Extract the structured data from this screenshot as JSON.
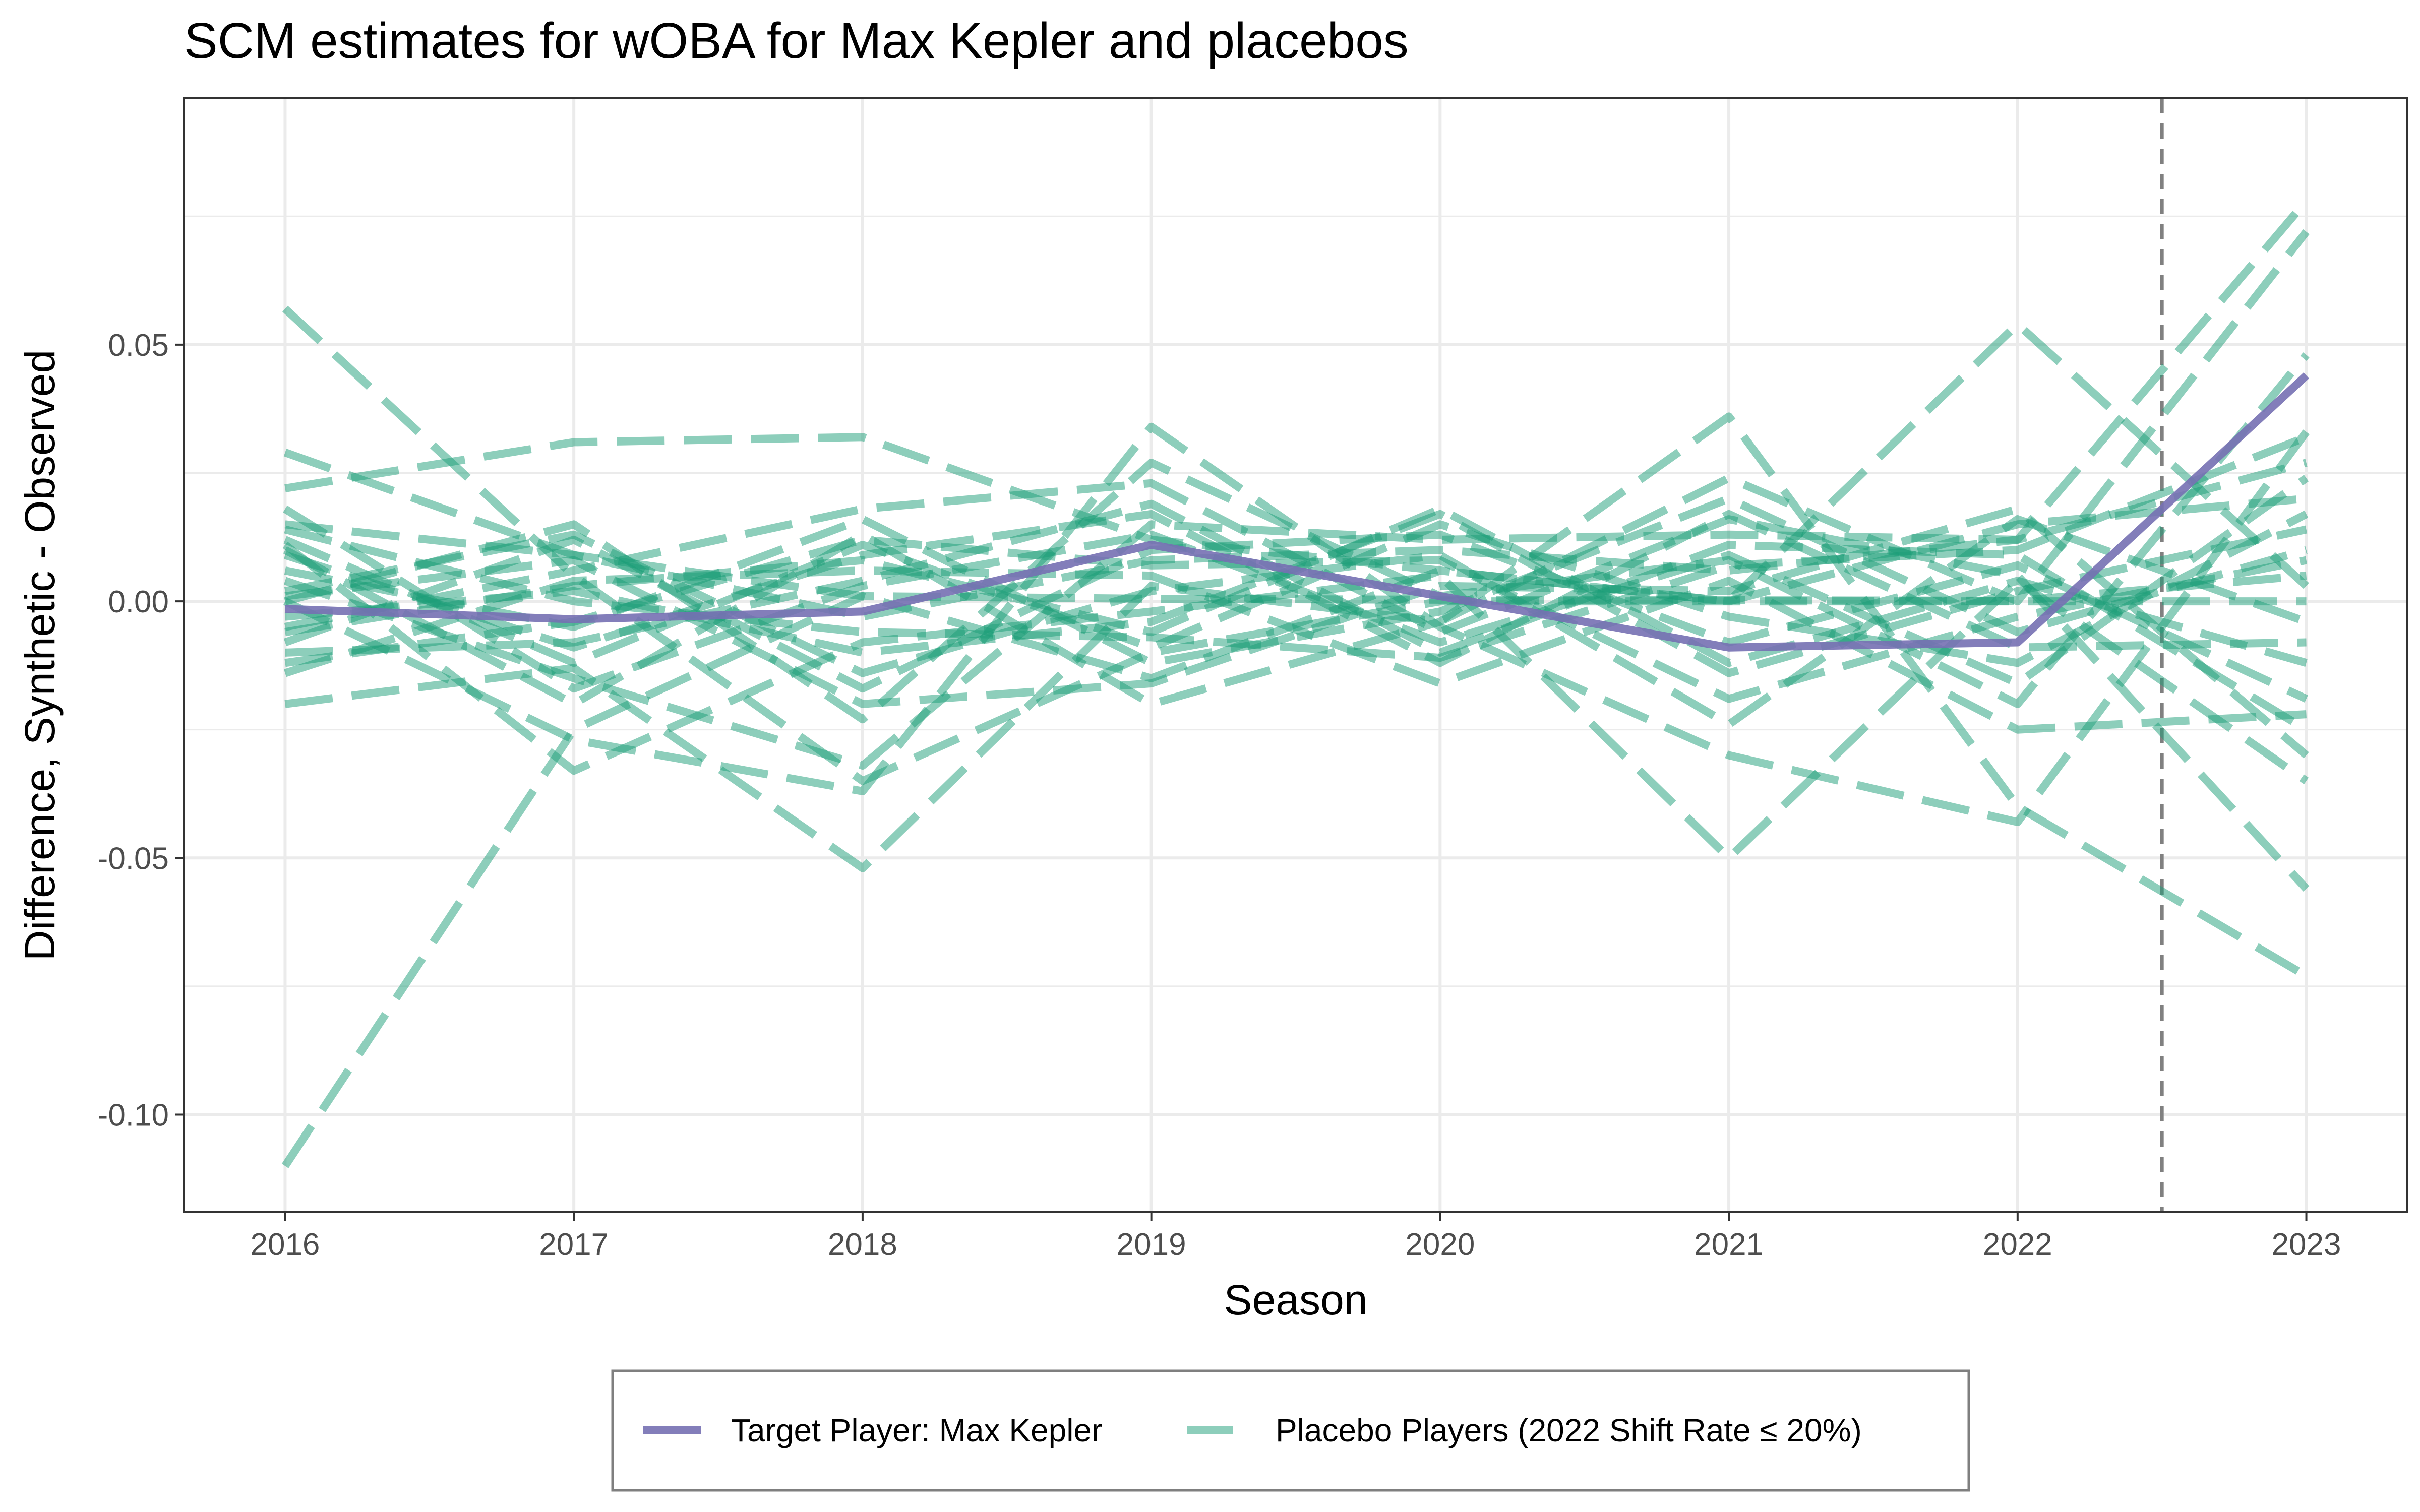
{
  "chart_data": {
    "type": "line",
    "title": "SCM estimates for wOBA for Max Kepler and placebos",
    "xlabel": "Season",
    "ylabel": "Difference, Synthetic - Observed",
    "x": [
      2016,
      2017,
      2018,
      2019,
      2020,
      2021,
      2022,
      2023
    ],
    "x_ticks": [
      "2016",
      "2017",
      "2018",
      "2019",
      "2020",
      "2021",
      "2022",
      "2023"
    ],
    "y_ticks": [
      {
        "value": 0.05,
        "label": "0.05"
      },
      {
        "value": 0.0,
        "label": "0.00"
      },
      {
        "value": -0.05,
        "label": "-0.05"
      },
      {
        "value": -0.1,
        "label": "-0.10"
      }
    ],
    "xlim": [
      2015.65,
      2023.35
    ],
    "ylim": [
      -0.119,
      0.098
    ],
    "grid": true,
    "treatment_line_x": 2022.5,
    "legend_position": "bottom",
    "colors": {
      "target": "#7570b3",
      "placebo": "#1b9e77",
      "treatment_line": "#808080",
      "grid": "#ebebeb",
      "panel_border": "#333333"
    },
    "series": [
      {
        "name": "Target Player: Max Kepler",
        "role": "target",
        "values": [
          -0.0015,
          -0.0035,
          -0.002,
          0.011,
          0.001,
          -0.009,
          -0.008,
          0.044
        ]
      },
      {
        "name": "Placebo Players (2022 Shift Rate ≤ 20%)",
        "role": "placebo",
        "values": [
          -0.11,
          -0.025,
          0.001,
          0.0005,
          0.0003,
          0.0002,
          0.0001,
          0.005
        ]
      },
      {
        "role": "placebo",
        "values": [
          0.057,
          0.005,
          -0.035,
          -0.01,
          0.0,
          0.0,
          0.0,
          0.0
        ]
      },
      {
        "role": "placebo",
        "values": [
          0.022,
          0.031,
          0.032,
          0.012,
          0.006,
          0.0,
          0.054,
          0.003
        ]
      },
      {
        "role": "placebo",
        "values": [
          0.029,
          0.009,
          -0.003,
          0.008,
          0.01,
          0.006,
          0.012,
          0.078
        ]
      },
      {
        "role": "placebo",
        "values": [
          -0.02,
          -0.013,
          -0.052,
          0.003,
          -0.004,
          0.024,
          0.0,
          0.072
        ]
      },
      {
        "role": "placebo",
        "values": [
          0.0,
          0.015,
          -0.023,
          0.027,
          0.001,
          0.008,
          -0.02,
          0.048
        ]
      },
      {
        "role": "placebo",
        "values": [
          0.011,
          -0.033,
          -0.008,
          -0.002,
          0.005,
          -0.05,
          0.004,
          -0.035
        ]
      },
      {
        "role": "placebo",
        "values": [
          0.0,
          -0.027,
          -0.037,
          0.034,
          -0.005,
          -0.03,
          -0.043,
          0.033
        ]
      },
      {
        "role": "placebo",
        "values": [
          -0.005,
          0.006,
          0.018,
          0.023,
          -0.006,
          0.016,
          0.005,
          -0.056
        ]
      },
      {
        "role": "placebo",
        "values": [
          0.01,
          -0.02,
          0.013,
          -0.02,
          -0.004,
          0.036,
          -0.04,
          -0.073
        ]
      },
      {
        "role": "placebo",
        "values": [
          0.004,
          -0.015,
          -0.032,
          0.015,
          0.012,
          0.013,
          0.012,
          0.027
        ]
      },
      {
        "role": "placebo",
        "values": [
          -0.006,
          0.003,
          0.008,
          -0.006,
          0.018,
          -0.012,
          0.004,
          -0.012
        ]
      },
      {
        "role": "placebo",
        "values": [
          -0.014,
          0.004,
          0.006,
          0.005,
          -0.016,
          0.004,
          -0.025,
          -0.022
        ]
      },
      {
        "role": "placebo",
        "values": [
          0.015,
          0.009,
          0.001,
          -0.015,
          0.006,
          0.0,
          0.015,
          0.02
        ]
      },
      {
        "role": "placebo",
        "values": [
          -0.01,
          -0.008,
          0.004,
          0.019,
          -0.01,
          0.011,
          0.009,
          -0.025
        ]
      },
      {
        "role": "placebo",
        "values": [
          0.012,
          -0.012,
          0.011,
          -0.009,
          0.015,
          -0.003,
          -0.012,
          0.017
        ]
      },
      {
        "role": "placebo",
        "values": [
          0.002,
          0.013,
          -0.014,
          0.002,
          0.009,
          -0.024,
          0.016,
          -0.004
        ]
      },
      {
        "role": "placebo",
        "values": [
          0.006,
          -0.005,
          0.016,
          -0.012,
          -0.002,
          0.02,
          -0.006,
          0.01
        ]
      },
      {
        "role": "placebo",
        "values": [
          -0.008,
          0.012,
          -0.017,
          0.01,
          0.013,
          -0.008,
          0.007,
          -0.019
        ]
      },
      {
        "role": "placebo",
        "values": [
          0.018,
          -0.017,
          0.003,
          0.013,
          -0.008,
          0.009,
          -0.016,
          0.024
        ]
      },
      {
        "role": "placebo",
        "values": [
          -0.003,
          0.002,
          -0.01,
          -0.004,
          0.017,
          -0.014,
          0.002,
          0.014
        ]
      },
      {
        "role": "placebo",
        "values": [
          0.009,
          -0.009,
          0.009,
          0.017,
          -0.012,
          0.017,
          -0.009,
          -0.008
        ]
      },
      {
        "role": "placebo",
        "values": [
          0.001,
          0.008,
          -0.02,
          -0.016,
          0.003,
          0.002,
          0.018,
          -0.03
        ]
      },
      {
        "role": "placebo",
        "values": [
          -0.012,
          -0.004,
          0.012,
          0.007,
          0.008,
          -0.019,
          -0.003,
          0.008
        ]
      },
      {
        "role": "placebo",
        "values": [
          0.014,
          0.0,
          -0.006,
          -0.007,
          -0.011,
          0.007,
          0.01,
          0.032
        ]
      }
    ]
  },
  "legend": {
    "items": [
      {
        "label": "Target Player: Max Kepler",
        "color": "#7570b3",
        "style": "solid"
      },
      {
        "label": "Placebo Players (2022 Shift Rate ≤ 20%)",
        "color": "#1b9e77",
        "style": "dashed"
      }
    ]
  }
}
